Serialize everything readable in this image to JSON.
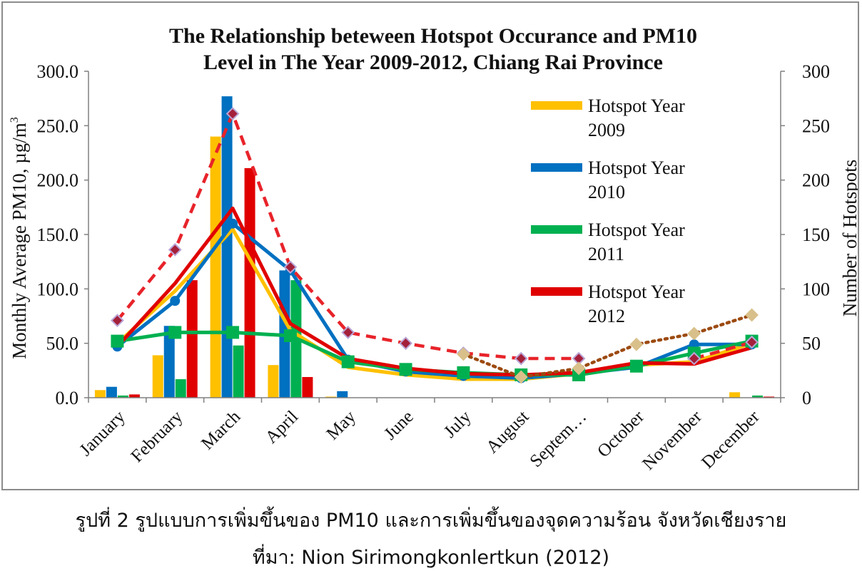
{
  "chart_data": {
    "type": "bar",
    "title": [
      "The Relationship beteween Hotspot Occurance and PM10",
      "Level in The Year 2009-2012, Chiang Rai Province"
    ],
    "ylabel": "Monthly Average PM10, µg/m³",
    "ylabel_main": "Monthly Average PM10,  µg/m",
    "ylabel_sup": "3",
    "y2label": "Number of Hotspots",
    "ylim": [
      0,
      300
    ],
    "y2lim": [
      0,
      300
    ],
    "yticks": [
      "0.0",
      "50.0",
      "100.0",
      "150.0",
      "200.0",
      "250.0",
      "300.0"
    ],
    "y2ticks": [
      "0",
      "50",
      "100",
      "150",
      "200",
      "250",
      "300"
    ],
    "categories": [
      "January",
      "February",
      "March",
      "April",
      "May",
      "June",
      "July",
      "August",
      "Septem…",
      "October",
      "November",
      "December"
    ],
    "legend_position": "top-right",
    "bar_series": [
      {
        "name": "Hotspot Year 2009",
        "color": "#ffc000",
        "values": [
          7,
          39,
          240,
          30,
          1,
          0,
          0,
          0,
          0,
          0,
          0,
          5
        ]
      },
      {
        "name": "Hotspot Year 2010",
        "color": "#0070c0",
        "values": [
          10,
          66,
          277,
          117,
          6,
          0,
          0,
          0,
          0,
          0,
          0,
          0
        ]
      },
      {
        "name": "Hotspot Year 2011",
        "color": "#00b050",
        "values": [
          2,
          17,
          48,
          108,
          0,
          0,
          0,
          0,
          0,
          0,
          0,
          2
        ]
      },
      {
        "name": "Hotspot Year 2012",
        "color": "#e00000",
        "values": [
          3,
          108,
          211,
          19,
          0,
          0,
          0,
          0,
          0,
          0,
          0,
          1
        ]
      }
    ],
    "line_series": [
      {
        "color": "#ffc000",
        "style": "solid",
        "marker": "none",
        "values": [
          50,
          98,
          155,
          62,
          28,
          21,
          17,
          17,
          22,
          30,
          33,
          50
        ]
      },
      {
        "color": "#0070c0",
        "style": "solid",
        "marker": "circle",
        "values": [
          47,
          89,
          160,
          117,
          35,
          24,
          20,
          18,
          22,
          28,
          49,
          49
        ]
      },
      {
        "color": "#00b050",
        "style": "solid",
        "marker": "square",
        "values": [
          52,
          60,
          60,
          57,
          33,
          26,
          23,
          21,
          21,
          29,
          41,
          52
        ]
      },
      {
        "color": "#e00000",
        "style": "solid",
        "marker": "none",
        "values": [
          47,
          105,
          174,
          68,
          36,
          27,
          22,
          21,
          23,
          32,
          31,
          46
        ]
      },
      {
        "color": "#e8232a",
        "style": "dashed",
        "marker": "diamond",
        "values": [
          71,
          136,
          261,
          120,
          60,
          50,
          41,
          36,
          36,
          null,
          36,
          51
        ]
      },
      {
        "color": "#9c4a10",
        "style": "dotted",
        "marker": "diamond",
        "values": [
          null,
          null,
          null,
          null,
          null,
          null,
          40,
          19,
          27,
          49,
          59,
          76
        ]
      }
    ]
  },
  "caption": {
    "line1": "รูปที่ 2 รูปแบบการเพิ่มขึ้นของ PM10 และการเพิ่มขึ้นของจุดความร้อน จังหวัดเชียงราย",
    "line2": "ที่มา: Nion Sirimongkonlertkun (2012)"
  }
}
